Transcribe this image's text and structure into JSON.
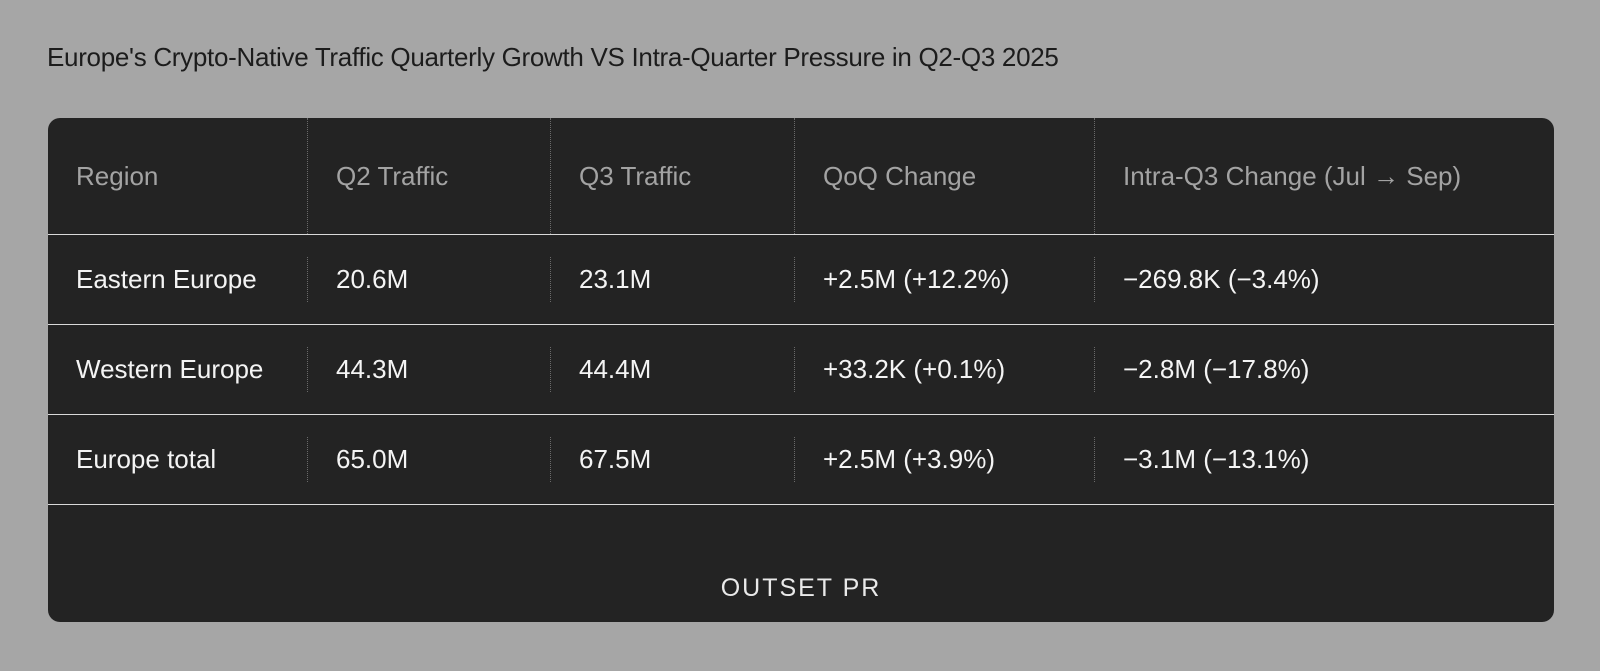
{
  "title": "Europe's Crypto-Native Traffic Quarterly Growth VS Intra-Quarter Pressure in Q2-Q3 2025",
  "brand": "OUTSET PR",
  "colors": {
    "background": "#a6a6a6",
    "card": "#232323",
    "header_text": "#a3a3a3",
    "cell_text": "#f4f4f4"
  },
  "chart_data": {
    "type": "table",
    "columns": [
      "Region",
      "Q2 Traffic",
      "Q3 Traffic",
      "QoQ Change",
      "Intra-Q3 Change (Jul → Sep)"
    ],
    "rows": [
      [
        "Eastern Europe",
        "20.6M",
        "23.1M",
        "+2.5M (+12.2%)",
        "−269.8K (−3.4%)"
      ],
      [
        "Western Europe",
        "44.3M",
        "44.4M",
        "+33.2K (+0.1%)",
        "−2.8M (−17.8%)"
      ],
      [
        "Europe total",
        "65.0M",
        "67.5M",
        "+2.5M (+3.9%)",
        "−3.1M (−13.1%)"
      ]
    ]
  }
}
